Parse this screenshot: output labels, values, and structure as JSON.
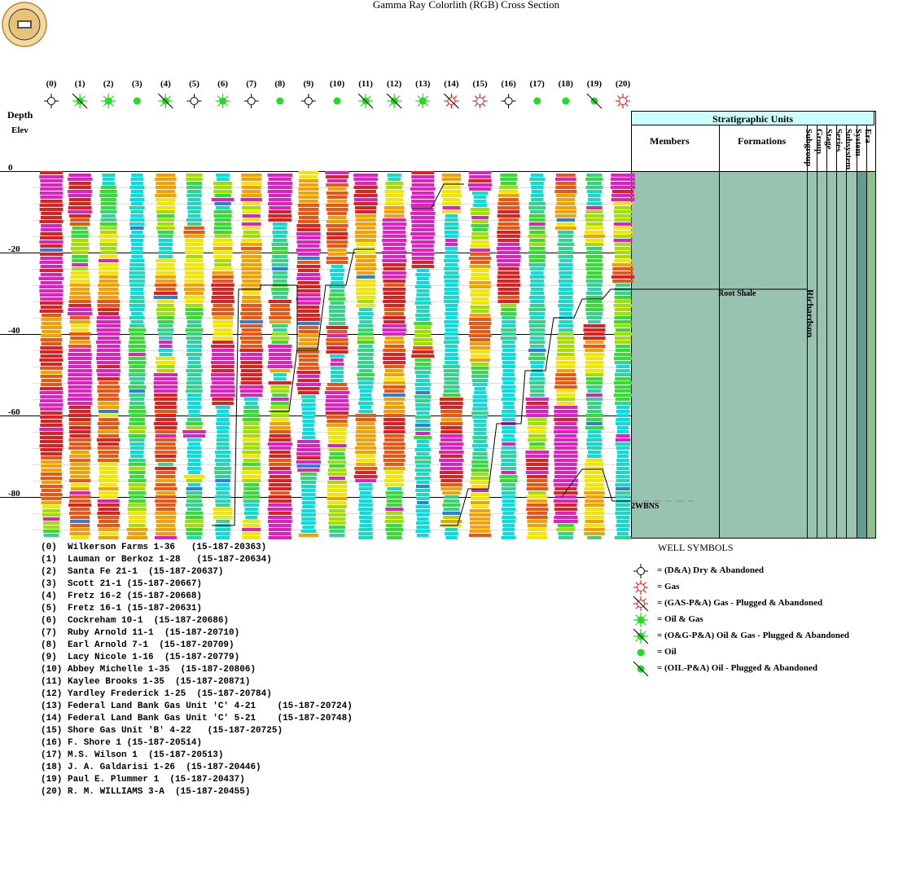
{
  "title": "Gamma Ray Colorlith (RGB) Cross Section",
  "logo": {
    "icon": "geological-survey-seal-icon"
  },
  "depth_label": "Depth",
  "elev_label": "Elev",
  "depth_ticks": [
    "0",
    "-20",
    "-40",
    "-60",
    "-80"
  ],
  "wells": [
    {
      "num": "(0)",
      "symbol": "dry-abandoned",
      "name": "(0)  Wilkerson Farms 1-36   (15-187-20363)"
    },
    {
      "num": "(1)",
      "symbol": "oil-gas-pa",
      "name": "(1)  Lauman or Berkoz 1-28   (15-187-20634)"
    },
    {
      "num": "(2)",
      "symbol": "oil-gas",
      "name": "(2)  Santa Fe 21-1  (15-187-20637)"
    },
    {
      "num": "(3)",
      "symbol": "oil",
      "name": "(3)  Scott 21-1 (15-187-20667)"
    },
    {
      "num": "(4)",
      "symbol": "oil-gas-pa",
      "name": "(4)  Fretz 16-2 (15-187-20668)"
    },
    {
      "num": "(5)",
      "symbol": "dry-abandoned",
      "name": "(5)  Fretz 16-1 (15-187-20631)"
    },
    {
      "num": "(6)",
      "symbol": "oil-gas",
      "name": "(6)  Cockreham 10-1  (15-187-20686)"
    },
    {
      "num": "(7)",
      "symbol": "dry-abandoned",
      "name": "(7)  Ruby Arnold 11-1  (15-187-20710)"
    },
    {
      "num": "(8)",
      "symbol": "oil",
      "name": "(8)  Earl Arnold 7-1  (15-187-20709)"
    },
    {
      "num": "(9)",
      "symbol": "dry-abandoned",
      "name": "(9)  Lacy Nicole 1-16  (15-187-20779)"
    },
    {
      "num": "(10)",
      "symbol": "oil",
      "name": "(10) Abbey Michelle 1-35  (15-187-20806)"
    },
    {
      "num": "(11)",
      "symbol": "oil-gas-pa",
      "name": "(11) Kaylee Brooks 1-35  (15-187-20871)"
    },
    {
      "num": "(12)",
      "symbol": "oil-gas-pa",
      "name": "(12) Yardley Frederick 1-25  (15-187-20784)"
    },
    {
      "num": "(13)",
      "symbol": "oil-gas",
      "name": "(13) Federal Land Bank Gas Unit 'C' 4-21    (15-187-20724)"
    },
    {
      "num": "(14)",
      "symbol": "gas-pa",
      "name": "(14) Federal Land Bank Gas Unit 'C' 5-21    (15-187-20748)"
    },
    {
      "num": "(15)",
      "symbol": "gas",
      "name": "(15) Shore Gas Unit 'B' 4-22   (15-187-20725)"
    },
    {
      "num": "(16)",
      "symbol": "dry-abandoned",
      "name": "(16) F. Shore 1 (15-187-20514)"
    },
    {
      "num": "(17)",
      "symbol": "oil",
      "name": "(17) M.S. Wilson 1  (15-187-20513)"
    },
    {
      "num": "(18)",
      "symbol": "oil",
      "name": "(18) J. A. Galdarisi 1-26  (15-187-20446)"
    },
    {
      "num": "(19)",
      "symbol": "oil-pa",
      "name": "(19) Paul E. Plummer 1  (15-187-20437)"
    },
    {
      "num": "(20)",
      "symbol": "gas",
      "name": "(20) R. M. WILLIAMS 3-A  (15-187-20455)"
    }
  ],
  "strat": {
    "header": "Stratigraphic Units",
    "members": "Members",
    "formations": "Formations",
    "vertical_heads": [
      "Subgroup",
      "Group",
      "Stage",
      "Series",
      "Subsystem",
      "System",
      "Era"
    ],
    "root_shale": "Root Shale",
    "richardson": "Richardson",
    "twbns": "2WBNS"
  },
  "symbols_legend": {
    "title": "WELL SYMBOLS",
    "items": [
      {
        "symbol": "dry-abandoned",
        "label": "= (D&A) Dry & Abandoned"
      },
      {
        "symbol": "gas",
        "label": "= Gas"
      },
      {
        "symbol": "gas-pa",
        "label": "= (GAS-P&A) Gas - Plugged & Abandoned"
      },
      {
        "symbol": "oil-gas",
        "label": "= Oil & Gas"
      },
      {
        "symbol": "oil-gas-pa",
        "label": "= (O&G-P&A) Oil & Gas - Plugged & Abandoned"
      },
      {
        "symbol": "oil",
        "label": "= Oil"
      },
      {
        "symbol": "oil-pa",
        "label": "= (OIL-P&A) Oil - Plugged & Abandoned"
      }
    ]
  },
  "colors": {
    "strat_fill": "#99c2b0",
    "strat_dark_col": "#5f9e90",
    "strat_head_fill": "#ccffff",
    "oil_green": "#22dd22",
    "gas_red": "#ee2222",
    "gr_palette": [
      "#00e0e0",
      "#19d9c2",
      "#33d38a",
      "#33dd33",
      "#a0e000",
      "#f2e600",
      "#f5a000",
      "#ee5511",
      "#e02020",
      "#e020c0",
      "#2a80e0"
    ]
  }
}
